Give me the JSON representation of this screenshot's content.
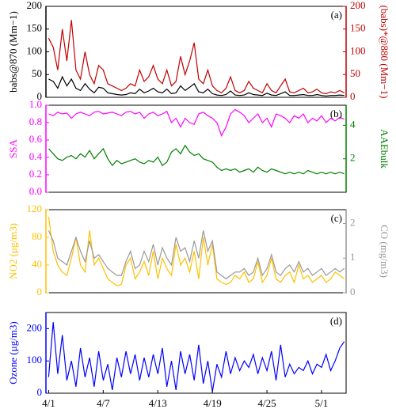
{
  "chart_data": [
    {
      "type": "line",
      "panel_label": "(a)",
      "ylabel": "babs@870 (Mm−1)",
      "y2label": "(babs)*@880 (Mm−1)",
      "ylabel_color": "#000000",
      "y2label_color": "#c00000",
      "x": [
        0,
        0.5,
        1,
        1.5,
        2,
        2.5,
        3,
        3.5,
        4,
        4.5,
        5,
        5.5,
        6,
        6.5,
        7,
        7.5,
        8,
        8.5,
        9,
        9.5,
        10,
        10.5,
        11,
        11.5,
        12,
        12.5,
        13,
        13.5,
        14,
        14.5,
        15,
        15.5,
        16,
        16.5,
        17,
        17.5,
        18,
        18.5,
        19,
        19.5,
        20,
        20.5,
        21,
        21.5,
        22,
        22.5,
        23,
        23.5,
        24,
        24.5,
        25,
        25.5,
        26,
        26.5,
        27,
        27.5,
        28,
        28.5,
        29,
        29.5,
        30,
        30.5,
        31,
        31.5,
        32,
        32.5
      ],
      "xlim": [
        -0.3,
        32.7
      ],
      "ylim": [
        0,
        200
      ],
      "yticks": [
        0,
        50,
        100,
        150,
        200
      ],
      "y2lim": [
        0,
        200
      ],
      "y2ticks": [
        0,
        50,
        100,
        150,
        200
      ],
      "series": [
        {
          "name": "(babs)*@880",
          "color": "#c00000",
          "axis": "y2",
          "values": [
            130,
            110,
            60,
            150,
            80,
            170,
            60,
            40,
            100,
            50,
            30,
            70,
            60,
            30,
            25,
            20,
            15,
            20,
            30,
            25,
            60,
            35,
            45,
            70,
            40,
            30,
            60,
            25,
            35,
            90,
            50,
            80,
            120,
            40,
            30,
            60,
            25,
            15,
            10,
            20,
            45,
            15,
            10,
            15,
            35,
            20,
            15,
            10,
            30,
            15,
            10,
            25,
            40,
            12,
            10,
            15,
            20,
            10,
            12,
            18,
            10,
            8,
            12,
            10,
            15,
            10
          ]
        },
        {
          "name": "babs@870",
          "color": "#000000",
          "values": [
            40,
            35,
            20,
            45,
            25,
            40,
            20,
            15,
            30,
            18,
            10,
            22,
            20,
            10,
            8,
            6,
            5,
            6,
            10,
            8,
            18,
            10,
            14,
            20,
            12,
            10,
            18,
            8,
            10,
            25,
            15,
            22,
            30,
            12,
            10,
            18,
            8,
            5,
            4,
            6,
            14,
            5,
            4,
            5,
            10,
            6,
            5,
            4,
            9,
            5,
            4,
            8,
            12,
            4,
            4,
            5,
            6,
            4,
            4,
            6,
            4,
            3,
            4,
            4,
            5,
            4
          ]
        }
      ]
    },
    {
      "type": "line",
      "panel_label": "(b)",
      "ylabel": "SSA",
      "y2label": "AAEbulk",
      "ylabel_color": "#ff00ff",
      "y2label_color": "#008000",
      "x": [
        0,
        0.5,
        1,
        1.5,
        2,
        2.5,
        3,
        3.5,
        4,
        4.5,
        5,
        5.5,
        6,
        6.5,
        7,
        7.5,
        8,
        8.5,
        9,
        9.5,
        10,
        10.5,
        11,
        11.5,
        12,
        12.5,
        13,
        13.5,
        14,
        14.5,
        15,
        15.5,
        16,
        16.5,
        17,
        17.5,
        18,
        18.5,
        19,
        19.5,
        20,
        20.5,
        21,
        21.5,
        22,
        22.5,
        23,
        23.5,
        24,
        24.5,
        25,
        25.5,
        26,
        26.5,
        27,
        27.5,
        28,
        28.5,
        29,
        29.5,
        30,
        30.5,
        31,
        31.5,
        32,
        32.5
      ],
      "xlim": [
        -0.3,
        32.7
      ],
      "ylim": [
        0,
        1
      ],
      "yticks": [
        {
          "value": 0,
          "label": "0.0"
        },
        0.2,
        0.4,
        0.6,
        0.8,
        {
          "value": 1,
          "label": "1.0"
        }
      ],
      "y2lim": [
        0,
        5.2
      ],
      "y2ticks": [
        2,
        4
      ],
      "series": [
        {
          "name": "SSA",
          "color": "#ff00ff",
          "values": [
            0.9,
            0.88,
            0.92,
            0.9,
            0.91,
            0.85,
            0.9,
            0.92,
            0.9,
            0.88,
            0.92,
            0.93,
            0.9,
            0.91,
            0.92,
            0.9,
            0.88,
            0.92,
            0.93,
            0.9,
            0.92,
            0.85,
            0.9,
            0.92,
            0.88,
            0.9,
            0.93,
            0.8,
            0.85,
            0.75,
            0.85,
            0.8,
            0.78,
            0.9,
            0.92,
            0.88,
            0.85,
            0.8,
            0.65,
            0.75,
            0.9,
            0.95,
            0.92,
            0.88,
            0.8,
            0.85,
            0.9,
            0.8,
            0.85,
            0.75,
            0.9,
            0.88,
            0.85,
            0.8,
            0.88,
            0.85,
            0.9,
            0.8,
            0.85,
            0.82,
            0.88,
            0.8,
            0.85,
            0.82,
            0.86,
            0.84
          ]
        },
        {
          "name": "AAEbulk",
          "color": "#008000",
          "axis": "y2",
          "values": [
            2.6,
            2.3,
            2.0,
            1.9,
            2.1,
            2.2,
            2.0,
            2.3,
            2.1,
            2.5,
            2.0,
            2.3,
            2.6,
            2.0,
            1.6,
            1.9,
            1.7,
            1.8,
            1.9,
            2.0,
            1.8,
            1.7,
            1.9,
            1.8,
            2.1,
            1.6,
            1.8,
            2.4,
            2.6,
            2.3,
            2.8,
            2.4,
            2.2,
            2.3,
            2.0,
            1.9,
            1.8,
            1.5,
            1.3,
            1.4,
            1.3,
            1.4,
            1.2,
            1.3,
            1.4,
            1.2,
            1.5,
            1.3,
            1.2,
            1.4,
            1.3,
            1.2,
            1.1,
            1.2,
            1.1,
            1.2,
            1.1,
            1.3,
            1.2,
            1.1,
            1.2,
            1.1,
            1.2,
            1.1,
            1.2,
            1.1
          ]
        }
      ]
    },
    {
      "type": "line",
      "panel_label": "(c)",
      "ylabel": "NO2 (μg/m3)",
      "y2label": "CO (mg/m3)",
      "ylabel_color": "#ffc000",
      "y2label_color": "#999999",
      "x": [
        0,
        0.5,
        1,
        1.5,
        2,
        2.5,
        3,
        3.5,
        4,
        4.5,
        5,
        5.5,
        6,
        6.5,
        7,
        7.5,
        8,
        8.5,
        9,
        9.5,
        10,
        10.5,
        11,
        11.5,
        12,
        12.5,
        13,
        13.5,
        14,
        14.5,
        15,
        15.5,
        16,
        16.5,
        17,
        17.5,
        18,
        18.5,
        19,
        19.5,
        20,
        20.5,
        21,
        21.5,
        22,
        22.5,
        23,
        23.5,
        24,
        24.5,
        25,
        25.5,
        26,
        26.5,
        27,
        27.5,
        28,
        28.5,
        29,
        29.5,
        30,
        30.5,
        31,
        31.5,
        32,
        32.5
      ],
      "xlim": [
        -0.3,
        32.7
      ],
      "ylim": [
        0,
        120
      ],
      "yticks": [
        0,
        40,
        80,
        120
      ],
      "y2lim": [
        0,
        2.4
      ],
      "y2ticks": [
        0,
        1,
        2
      ],
      "series": [
        {
          "name": "NO2",
          "color": "#ffc000",
          "values": [
            110,
            60,
            40,
            30,
            25,
            50,
            80,
            40,
            30,
            90,
            40,
            50,
            35,
            20,
            15,
            10,
            12,
            40,
            50,
            20,
            30,
            45,
            25,
            60,
            20,
            50,
            35,
            25,
            70,
            40,
            50,
            30,
            60,
            20,
            80,
            40,
            70,
            20,
            15,
            12,
            15,
            25,
            20,
            30,
            15,
            20,
            45,
            15,
            25,
            50,
            20,
            15,
            25,
            30,
            15,
            40,
            20,
            25,
            15,
            20,
            25,
            15,
            20,
            30,
            25,
            20
          ]
        },
        {
          "name": "CO",
          "color": "#999999",
          "axis": "y2",
          "values": [
            1.8,
            1.5,
            1.0,
            0.9,
            0.8,
            1.2,
            1.6,
            1.2,
            0.9,
            1.5,
            1.0,
            1.1,
            0.9,
            0.7,
            0.6,
            0.5,
            0.5,
            0.9,
            1.2,
            0.7,
            0.8,
            1.2,
            0.9,
            1.4,
            0.8,
            1.3,
            1.0,
            0.8,
            1.6,
            1.2,
            1.3,
            0.9,
            1.5,
            1.0,
            1.8,
            1.2,
            1.5,
            0.6,
            0.5,
            0.4,
            0.5,
            0.6,
            0.6,
            0.7,
            0.5,
            0.6,
            1.0,
            0.5,
            0.7,
            1.1,
            0.6,
            0.5,
            0.7,
            0.8,
            0.6,
            0.9,
            0.6,
            0.7,
            0.5,
            0.6,
            0.7,
            0.5,
            0.6,
            0.7,
            0.6,
            0.7
          ]
        }
      ]
    },
    {
      "type": "line",
      "panel_label": "(d)",
      "ylabel": "Ozone (μg/m3)",
      "ylabel_color": "#0000ff",
      "x": [
        0,
        0.5,
        1,
        1.5,
        2,
        2.5,
        3,
        3.5,
        4,
        4.5,
        5,
        5.5,
        6,
        6.5,
        7,
        7.5,
        8,
        8.5,
        9,
        9.5,
        10,
        10.5,
        11,
        11.5,
        12,
        12.5,
        13,
        13.5,
        14,
        14.5,
        15,
        15.5,
        16,
        16.5,
        17,
        17.5,
        18,
        18.5,
        19,
        19.5,
        20,
        20.5,
        21,
        21.5,
        22,
        22.5,
        23,
        23.5,
        24,
        24.5,
        25,
        25.5,
        26,
        26.5,
        27,
        27.5,
        28,
        28.5,
        29,
        29.5,
        30,
        30.5,
        31,
        31.5,
        32,
        32.5
      ],
      "xlim": [
        -0.3,
        32.7
      ],
      "ylim": [
        0,
        250
      ],
      "yticks": [
        0,
        100,
        200
      ],
      "xticks": [
        {
          "value": 0,
          "label": "4/1"
        },
        {
          "value": 6,
          "label": "4/7"
        },
        {
          "value": 12,
          "label": "4/13"
        },
        {
          "value": 18,
          "label": "4/19"
        },
        {
          "value": 24,
          "label": "4/25"
        },
        {
          "value": 30,
          "label": "5/1"
        }
      ],
      "series": [
        {
          "name": "Ozone",
          "color": "#0000ff",
          "values": [
            50,
            220,
            60,
            180,
            40,
            100,
            20,
            140,
            50,
            110,
            20,
            130,
            40,
            90,
            10,
            110,
            50,
            130,
            60,
            120,
            40,
            110,
            50,
            120,
            60,
            140,
            20,
            100,
            10,
            130,
            60,
            120,
            40,
            150,
            30,
            100,
            5,
            90,
            50,
            130,
            60,
            110,
            70,
            100,
            80,
            120,
            60,
            110,
            70,
            130,
            40,
            150,
            50,
            90,
            60,
            80,
            70,
            100,
            60,
            90,
            80,
            120,
            70,
            100,
            140,
            160
          ]
        }
      ]
    }
  ]
}
